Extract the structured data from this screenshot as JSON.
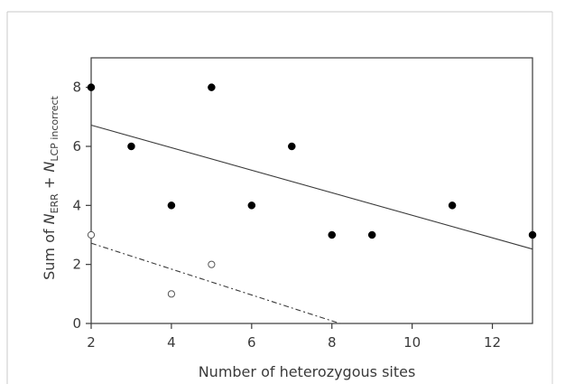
{
  "chart_data": {
    "type": "scatter",
    "title": "",
    "xlabel": "Number of heterozygous sites",
    "ylabel": {
      "prefix": "Sum of ",
      "n1": "N",
      "sub1": "ERR",
      "plus": " + ",
      "n2": "N",
      "sub2": "LCP incorrect"
    },
    "xlim": [
      2,
      13
    ],
    "ylim": [
      0,
      9
    ],
    "xticks": [
      2,
      4,
      6,
      8,
      10,
      12
    ],
    "yticks": [
      0,
      2,
      4,
      6,
      8
    ],
    "grid": false,
    "legend": "none",
    "series": [
      {
        "marker": "filled",
        "color": "#000000",
        "points": [
          [
            2,
            8
          ],
          [
            3,
            6
          ],
          [
            4,
            4
          ],
          [
            5,
            8
          ],
          [
            6,
            4
          ],
          [
            7,
            6
          ],
          [
            8,
            3
          ],
          [
            9,
            3
          ],
          [
            11,
            4
          ],
          [
            13,
            3
          ]
        ],
        "fit_line": {
          "style": "solid",
          "x": [
            2,
            13
          ],
          "y": [
            6.72,
            2.52
          ]
        }
      },
      {
        "marker": "open",
        "color": "#000000",
        "points": [
          [
            2,
            3
          ],
          [
            4,
            1
          ],
          [
            5,
            2
          ]
        ],
        "fit_line": {
          "style": "dashed",
          "x": [
            2,
            8.2
          ],
          "y": [
            2.72,
            0
          ]
        }
      }
    ]
  }
}
